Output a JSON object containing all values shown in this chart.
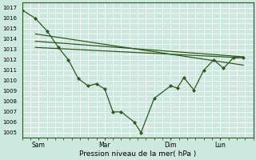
{
  "xlabel": "Pression niveau de la mer( hPa )",
  "bg_color": "#cde8df",
  "grid_color": "#ffffff",
  "line_color": "#2d5a1b",
  "ylim": [
    1004.5,
    1017.5
  ],
  "yticks": [
    1005,
    1006,
    1007,
    1008,
    1009,
    1010,
    1011,
    1012,
    1013,
    1014,
    1015,
    1016,
    1017
  ],
  "xtick_labels": [
    "Sam",
    "Mar",
    "Dim",
    "Lun"
  ],
  "xtick_positions": [
    1,
    5,
    9,
    12
  ],
  "xlim": [
    0,
    14
  ],
  "lines": [
    {
      "x": [
        0.0,
        0.8,
        1.5,
        2.2,
        2.8,
        3.4,
        4.0,
        4.5,
        5.0,
        5.5,
        6.0,
        6.8,
        7.2,
        8.0,
        9.0,
        9.4,
        9.8,
        10.4,
        11.0,
        11.6,
        12.2,
        12.8,
        13.4
      ],
      "y": [
        1016.8,
        1016.0,
        1014.8,
        1013.2,
        1012.0,
        1010.2,
        1009.5,
        1009.7,
        1009.2,
        1007.0,
        1007.0,
        1006.0,
        1005.0,
        1008.3,
        1009.5,
        1009.3,
        1010.3,
        1009.1,
        1011.0,
        1012.0,
        1011.2,
        1012.2,
        1012.2
      ],
      "has_markers": true
    },
    {
      "x": [
        0.8,
        13.4
      ],
      "y": [
        1014.5,
        1011.5
      ],
      "has_markers": false
    },
    {
      "x": [
        0.8,
        13.4
      ],
      "y": [
        1013.8,
        1012.3
      ],
      "has_markers": false
    },
    {
      "x": [
        0.8,
        13.4
      ],
      "y": [
        1013.2,
        1012.2
      ],
      "has_markers": false
    }
  ],
  "marker": "D",
  "marker_size": 2.0,
  "line_width": 0.9,
  "ytick_fontsize": 5.0,
  "xtick_fontsize": 5.5,
  "xlabel_fontsize": 6.5
}
